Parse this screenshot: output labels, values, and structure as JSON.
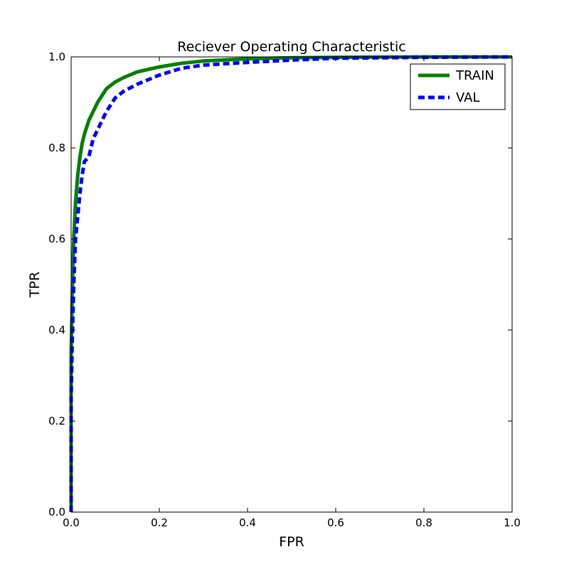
{
  "chart_data": {
    "type": "line",
    "title": "Reciever Operating Characteristic",
    "xlabel": "FPR",
    "ylabel": "TPR",
    "xlim": [
      0.0,
      1.0
    ],
    "ylim": [
      0.0,
      1.0
    ],
    "xticks": [
      "0.0",
      "0.2",
      "0.4",
      "0.6",
      "0.8",
      "1.0"
    ],
    "yticks": [
      "0.0",
      "0.2",
      "0.4",
      "0.6",
      "0.8",
      "1.0"
    ],
    "grid": false,
    "legend_position": "top-right",
    "series": [
      {
        "name": "TRAIN",
        "color": "#008000",
        "style": "solid",
        "x": [
          0.0,
          0.0,
          0.003,
          0.006,
          0.01,
          0.015,
          0.02,
          0.025,
          0.03,
          0.04,
          0.05,
          0.06,
          0.07,
          0.08,
          0.1,
          0.12,
          0.15,
          0.2,
          0.25,
          0.3,
          0.4,
          0.5,
          0.6,
          0.8,
          1.0
        ],
        "y": [
          0.0,
          0.35,
          0.5,
          0.6,
          0.68,
          0.74,
          0.78,
          0.81,
          0.83,
          0.86,
          0.88,
          0.9,
          0.915,
          0.93,
          0.945,
          0.955,
          0.967,
          0.978,
          0.986,
          0.991,
          0.996,
          0.998,
          0.999,
          1.0,
          1.0
        ]
      },
      {
        "name": "VAL",
        "color": "#0000ff",
        "style": "dashed",
        "x": [
          0.0,
          0.0,
          0.003,
          0.006,
          0.01,
          0.015,
          0.02,
          0.025,
          0.03,
          0.04,
          0.05,
          0.06,
          0.07,
          0.08,
          0.1,
          0.12,
          0.15,
          0.2,
          0.25,
          0.3,
          0.4,
          0.5,
          0.6,
          0.8,
          1.0
        ],
        "y": [
          0.0,
          0.25,
          0.4,
          0.5,
          0.6,
          0.65,
          0.7,
          0.74,
          0.77,
          0.78,
          0.82,
          0.84,
          0.86,
          0.88,
          0.91,
          0.925,
          0.94,
          0.96,
          0.975,
          0.982,
          0.988,
          0.993,
          0.997,
          0.999,
          1.0
        ]
      }
    ]
  }
}
